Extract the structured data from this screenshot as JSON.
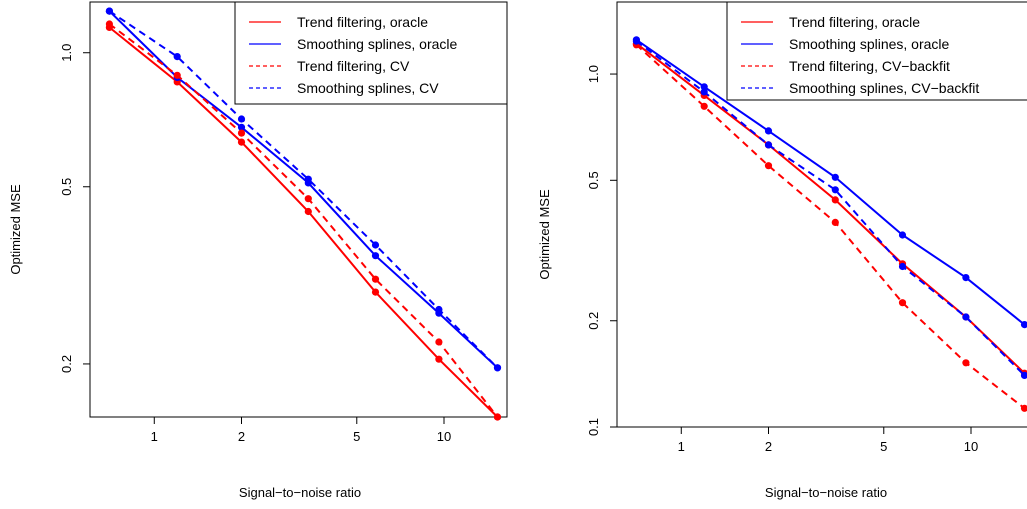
{
  "chart_data": [
    {
      "type": "line",
      "xlabel": "Signal−to−noise ratio",
      "ylabel": "Optimized MSE",
      "x_scale": "log",
      "y_scale": "log",
      "xlim": [
        0.6,
        16.5
      ],
      "ylim": [
        0.152,
        1.3
      ],
      "x_ticks": [
        1,
        2,
        5,
        10
      ],
      "x_tick_labels": [
        "1",
        "2",
        "5",
        "10"
      ],
      "y_ticks": [
        0.2,
        0.5,
        1.0
      ],
      "y_tick_labels": [
        "0.2",
        "0.5",
        "1.0"
      ],
      "grid": false,
      "legend_position": "top-right",
      "x": [
        0.7,
        1.2,
        2.0,
        3.4,
        5.8,
        9.6,
        15.3
      ],
      "series": [
        {
          "name": "Trend filtering, oracle",
          "color": "#ff0000",
          "dash": "solid",
          "values": [
            1.14,
            0.86,
            0.63,
            0.44,
            0.29,
            0.205,
            0.152
          ]
        },
        {
          "name": "Smoothing splines, oracle",
          "color": "#0000ff",
          "dash": "solid",
          "values": [
            1.24,
            0.88,
            0.68,
            0.51,
            0.35,
            0.26,
            0.196
          ]
        },
        {
          "name": "Trend filtering, CV",
          "color": "#ff0000",
          "dash": "dashed",
          "values": [
            1.16,
            0.89,
            0.66,
            0.47,
            0.31,
            0.224,
            0.152
          ]
        },
        {
          "name": "Smoothing splines, CV",
          "color": "#0000ff",
          "dash": "dashed",
          "values": [
            1.24,
            0.98,
            0.71,
            0.52,
            0.37,
            0.265,
            0.196
          ]
        }
      ]
    },
    {
      "type": "line",
      "xlabel": "Signal−to−noise ratio",
      "ylabel": "Optimized MSE",
      "x_scale": "log",
      "y_scale": "log",
      "xlim": [
        0.6,
        16.5
      ],
      "ylim": [
        0.1,
        1.6
      ],
      "x_ticks": [
        1,
        2,
        5,
        10
      ],
      "x_tick_labels": [
        "1",
        "2",
        "5",
        "10"
      ],
      "y_ticks": [
        0.1,
        0.2,
        0.5,
        1.0
      ],
      "y_tick_labels": [
        "0.1",
        "0.2",
        "0.5",
        "1.0"
      ],
      "grid": false,
      "legend_position": "top-right",
      "x": [
        0.7,
        1.2,
        2.0,
        3.4,
        5.8,
        9.6,
        15.3
      ],
      "series": [
        {
          "name": "Trend filtering, oracle",
          "color": "#ff0000",
          "dash": "solid",
          "values": [
            1.22,
            0.87,
            0.63,
            0.44,
            0.29,
            0.205,
            0.142
          ]
        },
        {
          "name": "Smoothing splines, oracle",
          "color": "#0000ff",
          "dash": "solid",
          "values": [
            1.25,
            0.92,
            0.69,
            0.51,
            0.35,
            0.265,
            0.195
          ]
        },
        {
          "name": "Trend filtering, CV−backfit",
          "color": "#ff0000",
          "dash": "dashed",
          "values": [
            1.21,
            0.81,
            0.55,
            0.38,
            0.225,
            0.152,
            0.113
          ]
        },
        {
          "name": "Smoothing splines, CV−backfit",
          "color": "#0000ff",
          "dash": "dashed",
          "values": [
            1.24,
            0.89,
            0.63,
            0.47,
            0.285,
            0.205,
            0.14
          ]
        }
      ]
    }
  ]
}
